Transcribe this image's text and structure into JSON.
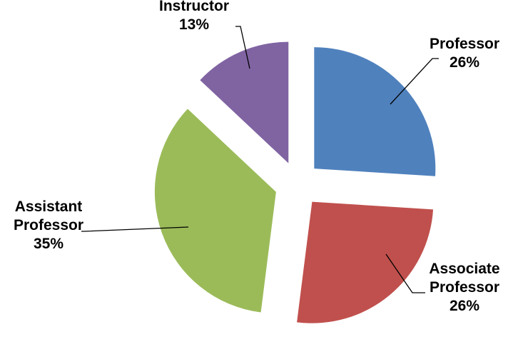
{
  "chart_data": {
    "type": "pie",
    "title": "",
    "exploded": true,
    "start_angle_deg": 0,
    "direction": "clockwise",
    "slices": [
      {
        "category": "Professor",
        "value": 26,
        "label_lines": [
          "Professor",
          "26%"
        ],
        "color": "#4F81BD"
      },
      {
        "category": "Associate Professor",
        "value": 26,
        "label_lines": [
          "Associate",
          "Professor",
          "26%"
        ],
        "color": "#C0504D"
      },
      {
        "category": "Assistant Professor",
        "value": 35,
        "label_lines": [
          "Assistant",
          "Professor",
          "35%"
        ],
        "color": "#9BBB59"
      },
      {
        "category": "Instructor",
        "value": 13,
        "label_lines": [
          "Instructor",
          "13%"
        ],
        "color": "#8064A2"
      }
    ],
    "legend": "none",
    "data_labels": "outside with leader lines"
  }
}
